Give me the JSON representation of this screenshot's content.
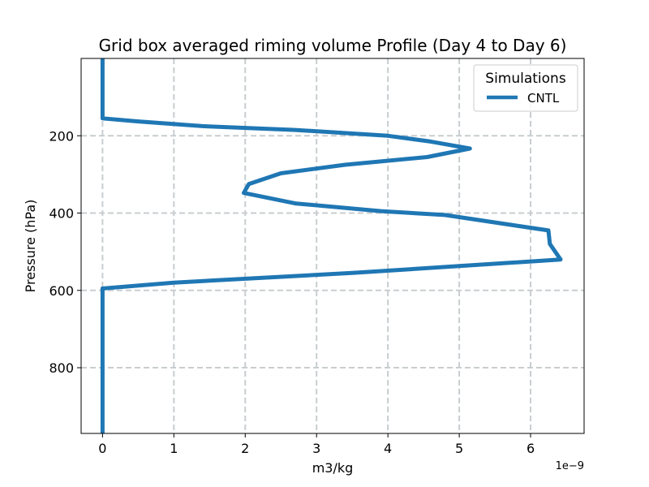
{
  "chart_data": {
    "type": "line",
    "title": "Grid box averaged riming volume Profile (Day 4 to Day 6)",
    "xlabel": "m3/kg",
    "ylabel": "Pressure (hPa)",
    "x_offset_label": "1e−9",
    "x_scale": 1e-09,
    "xlim": [
      -0.3,
      6.75
    ],
    "ylim": [
      970,
      0
    ],
    "y_inverted": true,
    "x_ticks": [
      0,
      1,
      2,
      3,
      4,
      5,
      6
    ],
    "x_tick_labels": [
      "0",
      "1",
      "2",
      "3",
      "4",
      "5",
      "6"
    ],
    "y_ticks": [
      200,
      400,
      600,
      800
    ],
    "y_tick_labels": [
      "200",
      "400",
      "600",
      "800"
    ],
    "grid": true,
    "legend": {
      "title": "Simulations",
      "position": "top-right"
    },
    "series": [
      {
        "name": "CNTL",
        "color": "#1f77b4",
        "x": [
          0,
          0,
          0,
          0.5,
          1.4,
          2.7,
          4.0,
          4.6,
          5.15,
          4.55,
          3.4,
          2.5,
          2.05,
          1.98,
          2.7,
          3.9,
          4.8,
          6.25,
          6.27,
          6.42,
          5.0,
          3.5,
          1.0,
          0,
          0,
          0,
          0
        ],
        "y": [
          0,
          100,
          155,
          163,
          175,
          185,
          200,
          215,
          233,
          255,
          275,
          297,
          325,
          348,
          375,
          395,
          405,
          445,
          480,
          520,
          537,
          555,
          580,
          595,
          700,
          850,
          970
        ]
      }
    ]
  }
}
